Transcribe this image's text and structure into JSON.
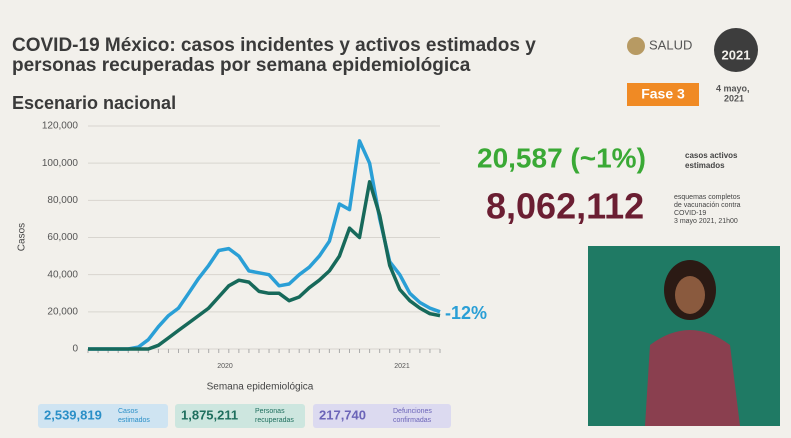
{
  "header": {
    "title_line1": "COVID-19 México: casos incidentes y activos estimados y",
    "title_line2": "personas recuperadas por semana epidemiológica",
    "subtitle": "Escenario nacional",
    "logo": "SALUD",
    "year_logo": "2021",
    "phase": "Fase 3",
    "date": "4 mayo,",
    "date_year": "2021"
  },
  "stats": {
    "active": "20,587 (~1%)",
    "active_label_1": "casos activos",
    "active_label_2": "estimados",
    "vaccination": "8,062,112",
    "vaccination_label_1": "esquemas completos",
    "vaccination_label_2": "de vacunación contra",
    "vaccination_label_3": "COVID-19",
    "vaccination_label_4": "3 mayo 2021, 21h00"
  },
  "footer": {
    "boxes": [
      {
        "value": "2,539,819",
        "label_1": "Casos",
        "label_2": "estimados"
      },
      {
        "value": "1,875,211",
        "label_1": "Personas",
        "label_2": "recuperadas"
      },
      {
        "value": "217,740",
        "label_1": "Defunciones",
        "label_2": "confirmadas"
      }
    ]
  },
  "chart_data": {
    "type": "line",
    "y_label": "Casos",
    "x_label": "Semana epidemiológica",
    "annotation": "-12%",
    "year_labels": [
      "2020",
      "2021"
    ],
    "categories": [
      null,
      null,
      null,
      null,
      null,
      null,
      null,
      null,
      null,
      null,
      null,
      null,
      null,
      null,
      null,
      null,
      null,
      null,
      null,
      null,
      null,
      null,
      null,
      null,
      null,
      null,
      null,
      null,
      null,
      null,
      null,
      null,
      null,
      null,
      null,
      null
    ],
    "series": [
      {
        "color": "#2a9fd6",
        "values": [
          0,
          0,
          0,
          0,
          0,
          1000,
          5000,
          12000,
          18000,
          22000,
          30000,
          38000,
          45000,
          53000,
          54000,
          50000,
          42000,
          41000,
          40000,
          34000,
          35000,
          40000,
          44000,
          50000,
          58000,
          78000,
          75000,
          112000,
          100000,
          70000,
          47000,
          40000,
          30000,
          25000,
          22000,
          20000
        ]
      },
      {
        "color": "#17695a",
        "values": [
          0,
          0,
          0,
          0,
          0,
          0,
          0,
          2000,
          6000,
          10000,
          14000,
          18000,
          22000,
          28000,
          34000,
          37000,
          36000,
          31000,
          30000,
          30000,
          26000,
          28000,
          33000,
          37000,
          42000,
          50000,
          65000,
          60000,
          90000,
          72000,
          45000,
          32000,
          26000,
          22000,
          19000,
          18000
        ]
      }
    ],
    "ylim": [
      0,
      120000
    ],
    "yticks": [
      0,
      {
        "value": 20000,
        "label": "20,000"
      },
      {
        "value": 40000,
        "label": "40,000"
      },
      {
        "value": 60000,
        "label": "60,000"
      },
      {
        "value": 80000,
        "label": "80,000"
      },
      {
        "value": 100000,
        "label": "100,000"
      },
      {
        "value": 120000,
        "label": "120,000"
      }
    ],
    "grid": true
  }
}
